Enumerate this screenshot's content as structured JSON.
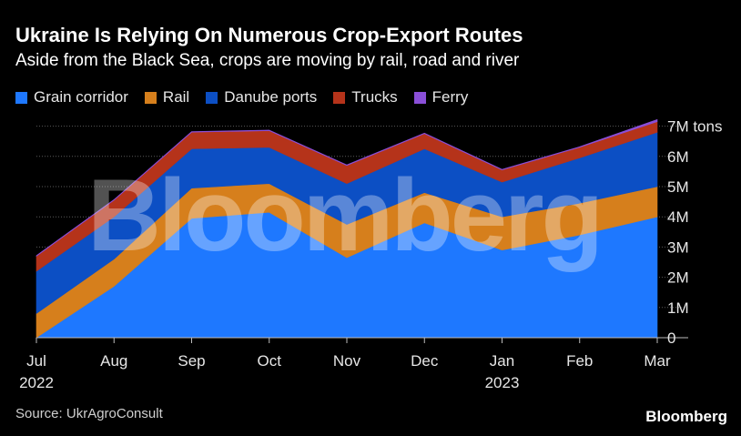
{
  "header": {
    "title": "Ukraine Is Relying On Numerous Crop-Export Routes",
    "subtitle": "Aside from the Black Sea, crops are moving by rail, road and river"
  },
  "footer": {
    "source": "Source: UkrAgroConsult",
    "brand": "Bloomberg"
  },
  "watermark": "Bloomberg",
  "chart_data": {
    "type": "area",
    "stacked": true,
    "categories": [
      "Jul",
      "Aug",
      "Sep",
      "Oct",
      "Nov",
      "Dec",
      "Jan",
      "Feb",
      "Mar"
    ],
    "category_sublabels": [
      "2022",
      "",
      "",
      "",
      "",
      "",
      "2023",
      "",
      ""
    ],
    "series": [
      {
        "name": "Grain corridor",
        "color": "#1e78ff",
        "values": [
          0,
          1.7,
          3.95,
          4.15,
          2.65,
          3.8,
          2.9,
          3.4,
          4.0
        ]
      },
      {
        "name": "Rail",
        "color": "#d67f1c",
        "values": [
          0.8,
          0.9,
          1.0,
          0.95,
          1.1,
          1.0,
          1.1,
          1.05,
          1.0
        ]
      },
      {
        "name": "Danube ports",
        "color": "#0c4fc4",
        "values": [
          1.4,
          1.4,
          1.3,
          1.2,
          1.35,
          1.45,
          1.15,
          1.5,
          1.8
        ]
      },
      {
        "name": "Trucks",
        "color": "#b5331a",
        "values": [
          0.5,
          0.55,
          0.55,
          0.55,
          0.6,
          0.5,
          0.4,
          0.35,
          0.35
        ]
      },
      {
        "name": "Ferry",
        "color": "#8a4fd8",
        "values": [
          0.02,
          0.02,
          0.02,
          0.02,
          0.02,
          0.02,
          0.02,
          0.02,
          0.07
        ]
      }
    ],
    "y_ticks": [
      0,
      1,
      2,
      3,
      4,
      5,
      6,
      7
    ],
    "y_tick_labels": [
      "0",
      "1M",
      "2M",
      "3M",
      "4M",
      "5M",
      "6M",
      "7M tons"
    ],
    "ylim": [
      0,
      7.5
    ],
    "y_axis_side": "right",
    "grid": true,
    "legend_position": "top-left"
  }
}
